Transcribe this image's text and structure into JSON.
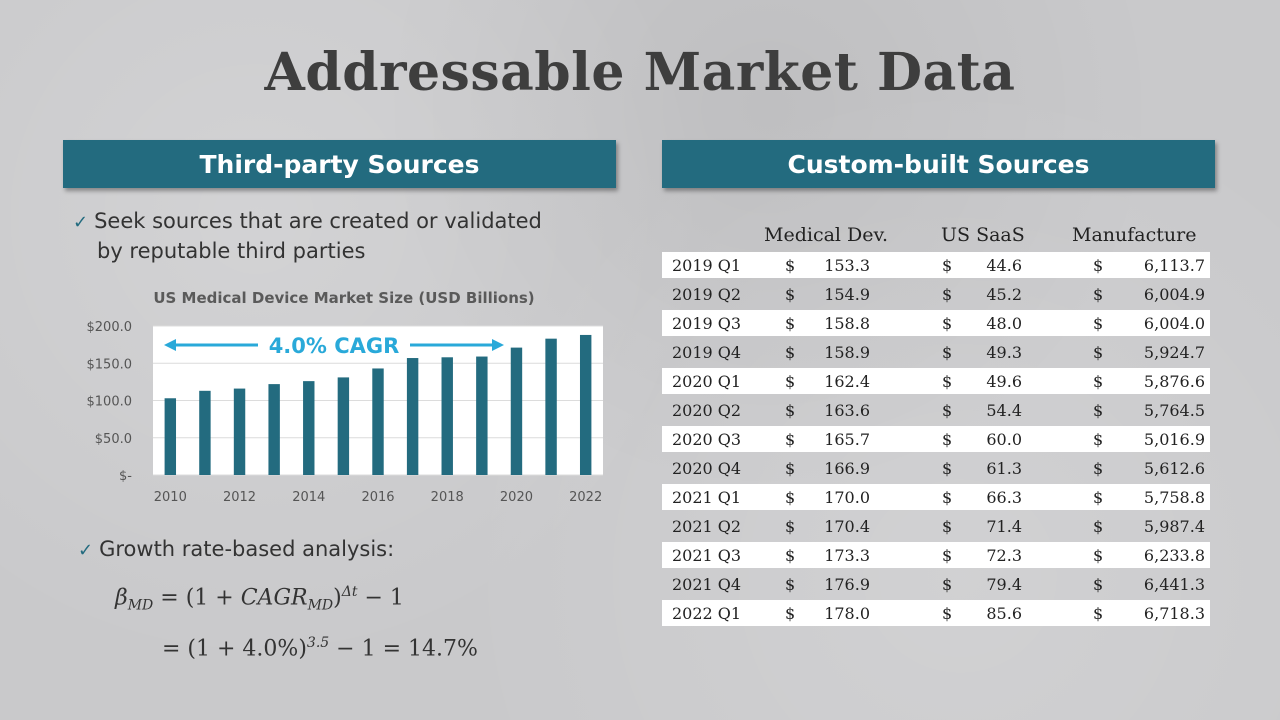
{
  "title": "Addressable Market Data",
  "left_banner": "Third-party Sources",
  "right_banner": "Custom-built Sources",
  "bullet1": {
    "line1": "Seek sources that are created or validated",
    "line2": "by reputable third parties"
  },
  "bullet2": "Growth rate-based analysis:",
  "check_icon": "✓",
  "formula1": {
    "beta": "β",
    "beta_sub": "MD",
    "eq": "= (1 +",
    "cagr": "CAGR",
    "cagr_sub": "MD",
    "close": ")",
    "exp": "Δt",
    "tail": "− 1"
  },
  "formula2": {
    "eq": "= (1 + 4.0%)",
    "exp": "3.5",
    "tail": "− 1 = 14.7%"
  },
  "chart_data": {
    "type": "bar",
    "title": "US Medical Device Market Size (USD Billions)",
    "annotation": "4.0% CAGR",
    "x": [
      2010,
      2011,
      2012,
      2013,
      2014,
      2015,
      2016,
      2017,
      2018,
      2019,
      2020,
      2021,
      2022
    ],
    "values": [
      103,
      113,
      116,
      122,
      126,
      131,
      143,
      157,
      158,
      159,
      171,
      183,
      188
    ],
    "x_tick_labels": [
      "2010",
      "2012",
      "2014",
      "2016",
      "2018",
      "2020",
      "2022"
    ],
    "y_tick_labels": [
      "$-",
      "$50.0",
      "$100.0",
      "$150.0",
      "$200.0"
    ],
    "y_ticks": [
      0,
      50,
      100,
      150,
      200
    ],
    "ylim": [
      0,
      200
    ],
    "grid": true,
    "bar_color": "#236b7f",
    "annotation_color": "#29a9d9"
  },
  "table": {
    "headers": [
      "Medical Dev.",
      "US SaaS",
      "Manufacture"
    ],
    "currency": "$",
    "rows": [
      {
        "label": "2019 Q1",
        "v1": "153.3",
        "v2": "44.6",
        "v3": "6,113.7"
      },
      {
        "label": "2019 Q2",
        "v1": "154.9",
        "v2": "45.2",
        "v3": "6,004.9"
      },
      {
        "label": "2019 Q3",
        "v1": "158.8",
        "v2": "48.0",
        "v3": "6,004.0"
      },
      {
        "label": "2019 Q4",
        "v1": "158.9",
        "v2": "49.3",
        "v3": "5,924.7"
      },
      {
        "label": "2020 Q1",
        "v1": "162.4",
        "v2": "49.6",
        "v3": "5,876.6"
      },
      {
        "label": "2020 Q2",
        "v1": "163.6",
        "v2": "54.4",
        "v3": "5,764.5"
      },
      {
        "label": "2020 Q3",
        "v1": "165.7",
        "v2": "60.0",
        "v3": "5,016.9"
      },
      {
        "label": "2020 Q4",
        "v1": "166.9",
        "v2": "61.3",
        "v3": "5,612.6"
      },
      {
        "label": "2021 Q1",
        "v1": "170.0",
        "v2": "66.3",
        "v3": "5,758.8"
      },
      {
        "label": "2021 Q2",
        "v1": "170.4",
        "v2": "71.4",
        "v3": "5,987.4"
      },
      {
        "label": "2021 Q3",
        "v1": "173.3",
        "v2": "72.3",
        "v3": "6,233.8"
      },
      {
        "label": "2021 Q4",
        "v1": "176.9",
        "v2": "79.4",
        "v3": "6,441.3"
      },
      {
        "label": "2022 Q1",
        "v1": "178.0",
        "v2": "85.6",
        "v3": "6,718.3"
      }
    ]
  },
  "colors": {
    "banner": "#236b7f",
    "title": "#3e3e3e"
  }
}
